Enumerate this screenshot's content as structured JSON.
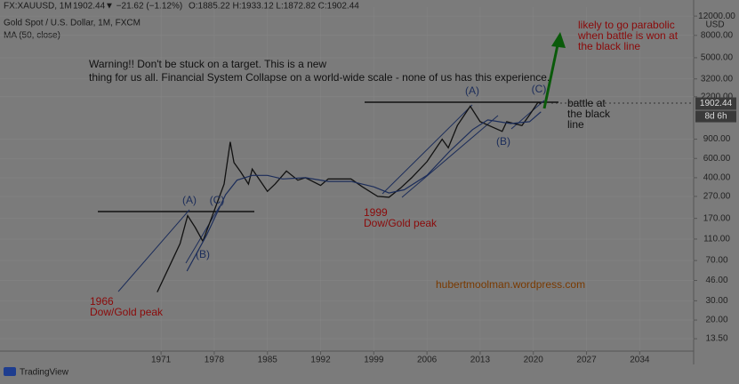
{
  "chart_data": {
    "type": "line",
    "header": {
      "symbol": "FX:XAUUSD, 1M",
      "last": "1902.44",
      "change": "▼ −21.62 (−1.12%)",
      "ohlc": "O:1885.22 H:1933.12 L:1872.82 C:1902.44"
    },
    "title": "Gold Spot / U.S. Dollar, 1M, FXCM",
    "y_label": "USD",
    "countdown": "8d 6h",
    "brand": "TradingView",
    "log_scale": true,
    "grid": true,
    "xlim": [
      1949.8,
      2041.1
    ],
    "xticks": [
      1971,
      1978,
      1985,
      1992,
      1999,
      2006,
      2013,
      2020,
      2027,
      2034
    ],
    "ylim": [
      10.4,
      14500
    ],
    "yticks": [
      {
        "value": 12000,
        "label": "12000.00"
      },
      {
        "value": 8000,
        "label": "8000.00"
      },
      {
        "value": 5000,
        "label": "5000.00"
      },
      {
        "value": 3200,
        "label": "3200.00"
      },
      {
        "value": 2200,
        "label": "2200.00"
      },
      {
        "value": 900,
        "label": "900.00"
      },
      {
        "value": 600,
        "label": "600.00"
      },
      {
        "value": 400,
        "label": "400.00"
      },
      {
        "value": 270,
        "label": "270.00"
      },
      {
        "value": 170,
        "label": "170.00"
      },
      {
        "value": 110,
        "label": "110.00"
      },
      {
        "value": 70,
        "label": "70.00"
      },
      {
        "value": 46,
        "label": "46.00"
      },
      {
        "value": 30,
        "label": "30.00"
      },
      {
        "value": 20,
        "label": "20.00"
      },
      {
        "value": 13.5,
        "label": "13.50"
      }
    ],
    "series": [
      {
        "color": "#111111",
        "x": [
          1970.5,
          1972,
          1973.5,
          1974.5,
          1975.5,
          1976.5,
          1978,
          1979.3,
          1980.1,
          1980.6,
          1981.5,
          1982.5,
          1983,
          1984,
          1985,
          1986,
          1987.5,
          1989,
          1990,
          1992,
          1993,
          1996,
          1997.5,
          1999.5,
          2001,
          2002.5,
          2004,
          2006,
          2008,
          2008.8,
          2010,
          2011.7,
          2013,
          2015.9,
          2016.5,
          2018.5,
          2019.5,
          2020.6,
          2021
        ],
        "values": [
          36,
          60,
          100,
          180,
          140,
          105,
          200,
          350,
          850,
          550,
          450,
          350,
          480,
          380,
          300,
          350,
          460,
          380,
          400,
          340,
          390,
          390,
          330,
          270,
          265,
          320,
          400,
          560,
          900,
          750,
          1200,
          1800,
          1300,
          1060,
          1300,
          1200,
          1500,
          1950,
          1902.44
        ]
      },
      {
        "name": "MA (50, close)",
        "color": "#1c2d5a",
        "x": [
          1974.4,
          1977,
          1979.5,
          1981,
          1983,
          1985,
          1987,
          1990,
          1993,
          1996,
          1999,
          2001,
          2003,
          2006,
          2009,
          2012,
          2014,
          2017,
          2019.5,
          2021
        ],
        "values": [
          56,
          120,
          280,
          380,
          420,
          420,
          390,
          400,
          370,
          370,
          330,
          290,
          310,
          420,
          700,
          1100,
          1350,
          1250,
          1300,
          1600
        ]
      }
    ],
    "annotations": [
      {
        "lines": [
          "Warning!! Don't be stuck on a target. This is a new",
          "thing for us all. Financial System Collapse on a world-wide scale - none of us has this experience."
        ],
        "color": "#111111"
      },
      {
        "lines": [
          "likely to go parabolic",
          "when battle is won at",
          "the black line"
        ],
        "color": "#8b0a0a"
      },
      {
        "lines": [
          "battle at",
          "the black",
          "line"
        ],
        "color": "#111111"
      },
      {
        "lines": [
          "(A)"
        ],
        "color": "#1c2d5a"
      },
      {
        "lines": [
          "(C)"
        ],
        "color": "#1c2d5a"
      },
      {
        "lines": [
          "(B)"
        ],
        "color": "#1c2d5a"
      },
      {
        "lines": [
          "(A)"
        ],
        "color": "#1c2d5a"
      },
      {
        "lines": [
          "(B)"
        ],
        "color": "#1c2d5a"
      },
      {
        "lines": [
          "(C)"
        ],
        "color": "#1c2d5a"
      },
      {
        "lines": [
          "1999",
          "Dow/Gold peak"
        ],
        "color": "#8b0a0a"
      },
      {
        "lines": [
          "1966",
          "Dow/Gold peak"
        ],
        "color": "#8b0a0a"
      },
      {
        "lines": [
          "hubertmoolman.wordpress.com"
        ],
        "color": "#7a3a00"
      }
    ]
  }
}
